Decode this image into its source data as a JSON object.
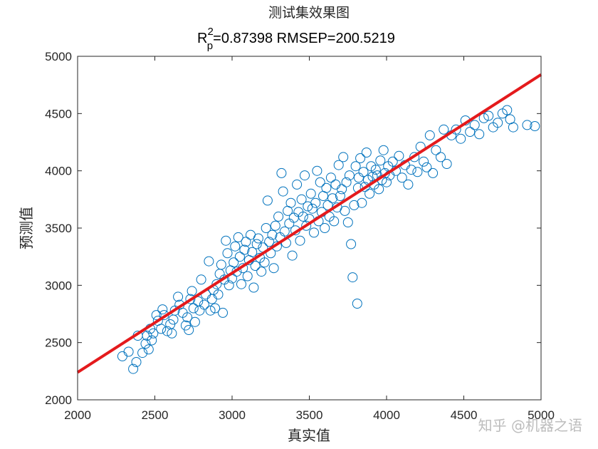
{
  "chart_data": {
    "type": "scatter",
    "title": "测试集效果图",
    "subtitle": {
      "main": "R",
      "sup": "2",
      "sub": "p",
      "rest": "=0.87398  RMSEP=200.5219"
    },
    "xlabel": "真实值",
    "ylabel": "预测值",
    "xlim": [
      2000,
      5000
    ],
    "ylim": [
      2000,
      5000
    ],
    "xticks": [
      "2000",
      "2500",
      "3000",
      "3500",
      "4000",
      "4500",
      "5000"
    ],
    "yticks": [
      "2000",
      "2500",
      "3000",
      "3500",
      "4000",
      "4500",
      "5000"
    ],
    "grid": false,
    "legend": "none",
    "marker": "open-circle",
    "colors": {
      "points": "#0072BD",
      "fit_line": "#E41A1C",
      "axes": "#262626"
    },
    "fit_line": {
      "x": [
        2000,
        5000
      ],
      "y": [
        2240,
        4840
      ]
    },
    "points": [
      [
        2290,
        2380
      ],
      [
        2330,
        2420
      ],
      [
        2360,
        2270
      ],
      [
        2380,
        2330
      ],
      [
        2390,
        2560
      ],
      [
        2420,
        2410
      ],
      [
        2440,
        2490
      ],
      [
        2450,
        2560
      ],
      [
        2460,
        2440
      ],
      [
        2470,
        2620
      ],
      [
        2480,
        2520
      ],
      [
        2490,
        2580
      ],
      [
        2510,
        2740
      ],
      [
        2520,
        2690
      ],
      [
        2540,
        2620
      ],
      [
        2550,
        2790
      ],
      [
        2560,
        2740
      ],
      [
        2580,
        2600
      ],
      [
        2600,
        2660
      ],
      [
        2610,
        2580
      ],
      [
        2620,
        2700
      ],
      [
        2630,
        2780
      ],
      [
        2650,
        2900
      ],
      [
        2660,
        2830
      ],
      [
        2680,
        2760
      ],
      [
        2700,
        2650
      ],
      [
        2710,
        2720
      ],
      [
        2720,
        2610
      ],
      [
        2730,
        2880
      ],
      [
        2740,
        2950
      ],
      [
        2750,
        2800
      ],
      [
        2760,
        2680
      ],
      [
        2780,
        2860
      ],
      [
        2790,
        2780
      ],
      [
        2800,
        3050
      ],
      [
        2820,
        2830
      ],
      [
        2830,
        2920
      ],
      [
        2850,
        3210
      ],
      [
        2860,
        2780
      ],
      [
        2870,
        2880
      ],
      [
        2880,
        2960
      ],
      [
        2890,
        2800
      ],
      [
        2900,
        3010
      ],
      [
        2910,
        2920
      ],
      [
        2920,
        3100
      ],
      [
        2930,
        3180
      ],
      [
        2940,
        2760
      ],
      [
        2950,
        3050
      ],
      [
        2960,
        3390
      ],
      [
        2970,
        3280
      ],
      [
        2980,
        3000
      ],
      [
        2990,
        3130
      ],
      [
        3000,
        3060
      ],
      [
        3010,
        3200
      ],
      [
        3020,
        3340
      ],
      [
        3030,
        3120
      ],
      [
        3040,
        3420
      ],
      [
        3050,
        3250
      ],
      [
        3060,
        3010
      ],
      [
        3070,
        3150
      ],
      [
        3080,
        3310
      ],
      [
        3090,
        3380
      ],
      [
        3100,
        3080
      ],
      [
        3110,
        3220
      ],
      [
        3120,
        3440
      ],
      [
        3130,
        3290
      ],
      [
        3140,
        2980
      ],
      [
        3150,
        3170
      ],
      [
        3160,
        3360
      ],
      [
        3170,
        3410
      ],
      [
        3180,
        3240
      ],
      [
        3190,
        3120
      ],
      [
        3200,
        3330
      ],
      [
        3210,
        3200
      ],
      [
        3220,
        3500
      ],
      [
        3230,
        3740
      ],
      [
        3240,
        3380
      ],
      [
        3250,
        3280
      ],
      [
        3260,
        3440
      ],
      [
        3270,
        3150
      ],
      [
        3280,
        3520
      ],
      [
        3290,
        3340
      ],
      [
        3300,
        3600
      ],
      [
        3310,
        3420
      ],
      [
        3320,
        3980
      ],
      [
        3330,
        3820
      ],
      [
        3340,
        3470
      ],
      [
        3350,
        3370
      ],
      [
        3360,
        3650
      ],
      [
        3370,
        3540
      ],
      [
        3380,
        3720
      ],
      [
        3390,
        3260
      ],
      [
        3400,
        3590
      ],
      [
        3410,
        3480
      ],
      [
        3420,
        3880
      ],
      [
        3430,
        3640
      ],
      [
        3440,
        3390
      ],
      [
        3450,
        3750
      ],
      [
        3460,
        3600
      ],
      [
        3470,
        3960
      ],
      [
        3480,
        3520
      ],
      [
        3490,
        3690
      ],
      [
        3500,
        3580
      ],
      [
        3510,
        3800
      ],
      [
        3520,
        3670
      ],
      [
        3530,
        3460
      ],
      [
        3540,
        3720
      ],
      [
        3550,
        4000
      ],
      [
        3560,
        3560
      ],
      [
        3570,
        3900
      ],
      [
        3580,
        3640
      ],
      [
        3590,
        3780
      ],
      [
        3600,
        3500
      ],
      [
        3610,
        3850
      ],
      [
        3620,
        3700
      ],
      [
        3630,
        3600
      ],
      [
        3640,
        3940
      ],
      [
        3650,
        3760
      ],
      [
        3660,
        3560
      ],
      [
        3670,
        3880
      ],
      [
        3680,
        3680
      ],
      [
        3690,
        4050
      ],
      [
        3700,
        3780
      ],
      [
        3710,
        3840
      ],
      [
        3720,
        4120
      ],
      [
        3730,
        3650
      ],
      [
        3740,
        3900
      ],
      [
        3750,
        3550
      ],
      [
        3760,
        3960
      ],
      [
        3770,
        3360
      ],
      [
        3780,
        3070
      ],
      [
        3790,
        3700
      ],
      [
        3800,
        4040
      ],
      [
        3810,
        2840
      ],
      [
        3815,
        3850
      ],
      [
        3820,
        3940
      ],
      [
        3830,
        4110
      ],
      [
        3840,
        3720
      ],
      [
        3850,
        3990
      ],
      [
        3860,
        3860
      ],
      [
        3870,
        4160
      ],
      [
        3880,
        3920
      ],
      [
        3890,
        3800
      ],
      [
        3900,
        4040
      ],
      [
        3910,
        3950
      ],
      [
        3920,
        3880
      ],
      [
        3930,
        4010
      ],
      [
        3940,
        3960
      ],
      [
        3950,
        3840
      ],
      [
        3960,
        4090
      ],
      [
        3970,
        3920
      ],
      [
        3980,
        4180
      ],
      [
        3990,
        3980
      ],
      [
        4000,
        3900
      ],
      [
        4010,
        4040
      ],
      [
        4020,
        3960
      ],
      [
        4040,
        4080
      ],
      [
        4060,
        4000
      ],
      [
        4080,
        4130
      ],
      [
        4100,
        3940
      ],
      [
        4120,
        4050
      ],
      [
        4140,
        3880
      ],
      [
        4160,
        4010
      ],
      [
        4180,
        4120
      ],
      [
        4200,
        3990
      ],
      [
        4220,
        4210
      ],
      [
        4240,
        4080
      ],
      [
        4260,
        4030
      ],
      [
        4280,
        4310
      ],
      [
        4300,
        3980
      ],
      [
        4320,
        4180
      ],
      [
        4350,
        4120
      ],
      [
        4370,
        4360
      ],
      [
        4390,
        4060
      ],
      [
        4420,
        4310
      ],
      [
        4450,
        4360
      ],
      [
        4480,
        4280
      ],
      [
        4510,
        4440
      ],
      [
        4540,
        4340
      ],
      [
        4570,
        4400
      ],
      [
        4600,
        4320
      ],
      [
        4630,
        4460
      ],
      [
        4660,
        4480
      ],
      [
        4690,
        4380
      ],
      [
        4720,
        4420
      ],
      [
        4750,
        4500
      ],
      [
        4780,
        4530
      ],
      [
        4800,
        4450
      ],
      [
        4820,
        4380
      ],
      [
        4910,
        4400
      ],
      [
        4960,
        4390
      ]
    ]
  },
  "watermark": "知乎 @机器之语"
}
